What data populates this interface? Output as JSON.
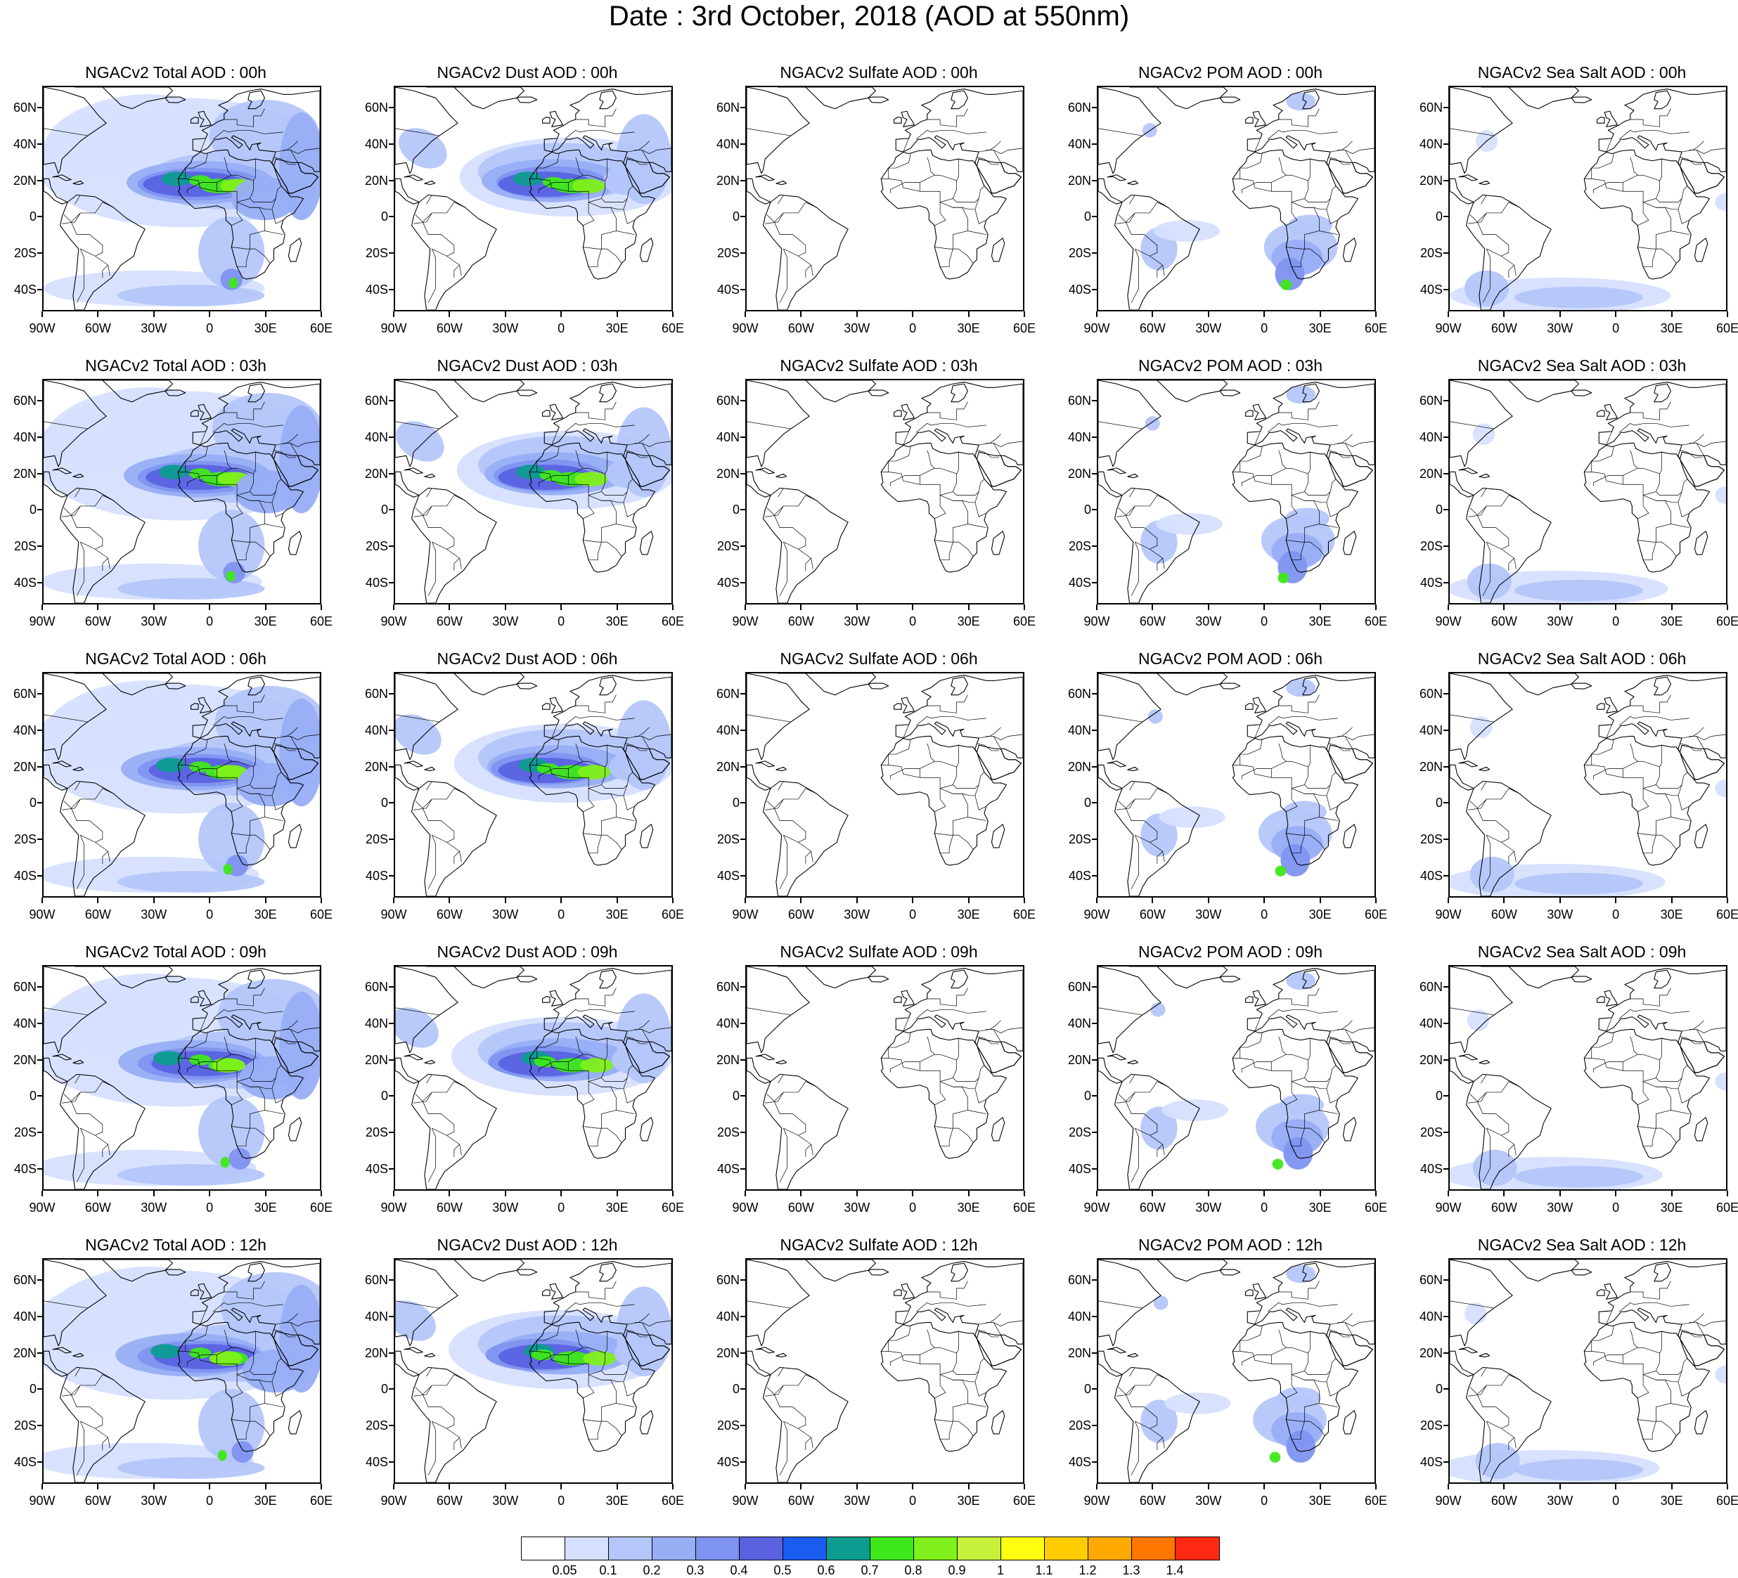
{
  "title": "Date : 3rd October, 2018 (AOD at 550nm)",
  "lat_labels": [
    "60N",
    "40N",
    "20N",
    "0",
    "20S",
    "40S"
  ],
  "lon_labels": [
    "90W",
    "60W",
    "30W",
    "0",
    "30E",
    "60E"
  ],
  "panels": [
    {
      "title": "NGACv2 Total AOD : 00h",
      "species": "total"
    },
    {
      "title": "NGACv2 Dust AOD : 00h",
      "species": "dust"
    },
    {
      "title": "NGACv2 Sulfate AOD : 00h",
      "species": "sulfate"
    },
    {
      "title": "NGACv2 POM AOD : 00h",
      "species": "pom"
    },
    {
      "title": "NGACv2 Sea Salt AOD : 00h",
      "species": "seasalt"
    },
    {
      "title": "NGACv2 Total AOD : 03h",
      "species": "total"
    },
    {
      "title": "NGACv2 Dust AOD : 03h",
      "species": "dust"
    },
    {
      "title": "NGACv2 Sulfate AOD : 03h",
      "species": "sulfate"
    },
    {
      "title": "NGACv2 POM AOD : 03h",
      "species": "pom"
    },
    {
      "title": "NGACv2 Sea Salt AOD : 03h",
      "species": "seasalt"
    },
    {
      "title": "NGACv2 Total AOD : 06h",
      "species": "total"
    },
    {
      "title": "NGACv2 Dust AOD : 06h",
      "species": "dust"
    },
    {
      "title": "NGACv2 Sulfate AOD : 06h",
      "species": "sulfate"
    },
    {
      "title": "NGACv2 POM AOD : 06h",
      "species": "pom"
    },
    {
      "title": "NGACv2 Sea Salt AOD : 06h",
      "species": "seasalt"
    },
    {
      "title": "NGACv2 Total AOD : 09h",
      "species": "total"
    },
    {
      "title": "NGACv2 Dust AOD : 09h",
      "species": "dust"
    },
    {
      "title": "NGACv2 Sulfate AOD : 09h",
      "species": "sulfate"
    },
    {
      "title": "NGACv2 POM AOD : 09h",
      "species": "pom"
    },
    {
      "title": "NGACv2 Sea Salt  AOD : 09h",
      "species": "seasalt"
    },
    {
      "title": "NGACv2 Total AOD  : 12h",
      "species": "total"
    },
    {
      "title": "NGACv2 Dust AOD : 12h",
      "species": "dust"
    },
    {
      "title": "NGACv2 Sulfate AOD : 12h",
      "species": "sulfate"
    },
    {
      "title": "NGACv2 POM  AOD : 12h",
      "species": "pom"
    },
    {
      "title": "NGACv2 Sea Salt  AOD : 12h",
      "species": "seasalt"
    }
  ],
  "colorbar": {
    "labels": [
      "0.05",
      "0.1",
      "0.2",
      "0.3",
      "0.4",
      "0.5",
      "0.6",
      "0.7",
      "0.8",
      "0.9",
      "1",
      "1.1",
      "1.2",
      "1.3",
      "1.4"
    ],
    "colors": [
      "#ffffff",
      "#d6e0ff",
      "#b4c6fa",
      "#98aef5",
      "#7f93f0",
      "#5a62e0",
      "#1a5cf0",
      "#0c9c90",
      "#3fe81a",
      "#7ff01a",
      "#c6f03a",
      "#ffff10",
      "#ffcc00",
      "#ffaa00",
      "#ff7700",
      "#ff2a14"
    ]
  }
}
